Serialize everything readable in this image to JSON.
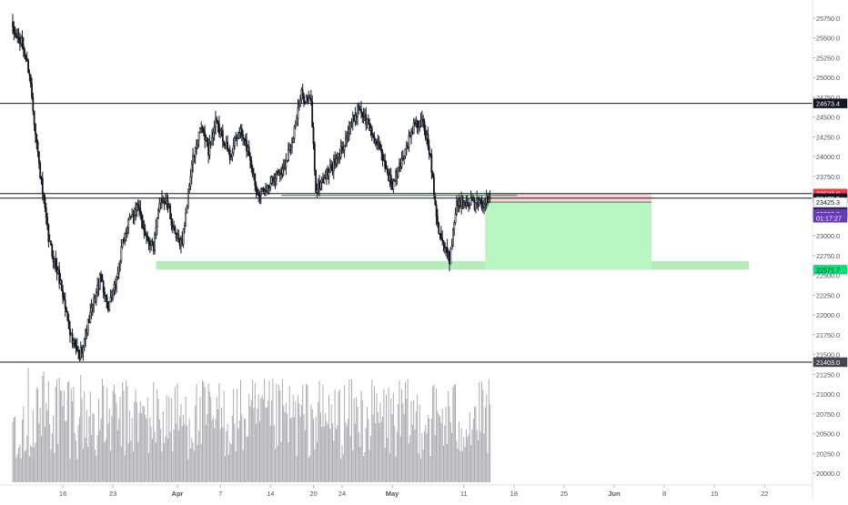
{
  "chart_data": {
    "type": "candlestick",
    "title": "",
    "xlabel": "",
    "ylabel": "",
    "ylim": [
      19900,
      25900
    ],
    "grid": false,
    "legend": "none",
    "price_axis": {
      "ticks": [
        20000,
        20250,
        20500,
        20750,
        21000,
        21250,
        21500,
        21750,
        22000,
        22250,
        22500,
        22750,
        23000,
        23250,
        23500,
        23750,
        24000,
        24250,
        24500,
        24750,
        25000,
        25250,
        25500,
        25750
      ],
      "tick_labels": [
        "20000.0",
        "20250.0",
        "20500.0",
        "20750.0",
        "21000.0",
        "21250.0",
        "21500.0",
        "21750.0",
        "22000.0",
        "22250.0",
        "22500.0",
        "22750.0",
        "23000.0",
        "23250.0",
        "23500.0",
        "23750.0",
        "24000.0",
        "24250.0",
        "24500.0",
        "24750.0",
        "25000.0",
        "25250.0",
        "25500.0",
        "25750.0"
      ]
    },
    "time_axis": {
      "labels": [
        "16",
        "23",
        "Apr",
        "7",
        "14",
        "20",
        "24",
        "May",
        "11",
        "18",
        "25",
        "Jun",
        "8",
        "15",
        "22"
      ],
      "label_positions": [
        "2020-03-16",
        "2020-03-23",
        "2020-04-01",
        "2020-04-07",
        "2020-04-14",
        "2020-04-20",
        "2020-04-24",
        "2020-05-01",
        "2020-05-11",
        "2020-05-18",
        "2020-05-25",
        "2020-06-01",
        "2020-06-08",
        "2020-06-15",
        "2020-06-22"
      ],
      "range": [
        "2020-03-09",
        "2020-06-26"
      ]
    },
    "candles": {
      "start": "2020-03-09T00:00",
      "interval_hours": 4,
      "count": 468,
      "anchors": [
        [
          0,
          25580
        ],
        [
          8,
          25420
        ],
        [
          14,
          25050
        ],
        [
          22,
          23900
        ],
        [
          30,
          22950
        ],
        [
          40,
          22400
        ],
        [
          50,
          21650
        ],
        [
          56,
          21480
        ],
        [
          66,
          22050
        ],
        [
          74,
          22500
        ],
        [
          80,
          22050
        ],
        [
          86,
          22380
        ],
        [
          94,
          23050
        ],
        [
          104,
          23380
        ],
        [
          112,
          23000
        ],
        [
          118,
          22850
        ],
        [
          124,
          23500
        ],
        [
          130,
          23380
        ],
        [
          136,
          22980
        ],
        [
          142,
          22920
        ],
        [
          150,
          23900
        ],
        [
          158,
          24380
        ],
        [
          164,
          24080
        ],
        [
          170,
          24420
        ],
        [
          176,
          24250
        ],
        [
          182,
          24000
        ],
        [
          190,
          24340
        ],
        [
          198,
          24050
        ],
        [
          204,
          23600
        ],
        [
          210,
          23530
        ],
        [
          218,
          23750
        ],
        [
          226,
          23820
        ],
        [
          234,
          24220
        ],
        [
          242,
          24780
        ],
        [
          250,
          24680
        ],
        [
          254,
          23580
        ],
        [
          262,
          23760
        ],
        [
          272,
          23960
        ],
        [
          282,
          24350
        ],
        [
          290,
          24640
        ],
        [
          298,
          24400
        ],
        [
          306,
          24130
        ],
        [
          312,
          23900
        ],
        [
          318,
          23620
        ],
        [
          328,
          24050
        ],
        [
          336,
          24380
        ],
        [
          344,
          24430
        ],
        [
          350,
          24000
        ],
        [
          356,
          23150
        ],
        [
          362,
          22850
        ],
        [
          366,
          22700
        ],
        [
          372,
          23420
        ],
        [
          380,
          23460
        ],
        [
          388,
          23390
        ],
        [
          393,
          23410
        ],
        [
          397,
          23451
        ],
        [
          400,
          23451
        ]
      ]
    },
    "horizontal_lines": [
      24673.4,
      23533.9,
      23475.3,
      21403.0
    ],
    "support_zone": [
      22571.7,
      22680
    ],
    "position": {
      "entry": 23425.3,
      "stop": 23533.9,
      "target": 22571.7,
      "start_index": 396,
      "end_index": 430
    },
    "trendline": {
      "from_index": 225,
      "to_index": 400,
      "value": 23533.9
    },
    "price_labels": [
      {
        "value": 24673.4,
        "text": "24673.4",
        "color": "#131722"
      },
      {
        "value": 23533.9,
        "text": "23533.9",
        "color": "#f23645"
      },
      {
        "value": 23475.3,
        "text": "23475.3",
        "color": "#131722"
      },
      {
        "value": 23425.3,
        "text": "23425.3",
        "color": "#ffffff"
      },
      {
        "value": 23296.7,
        "text": "23296.7",
        "color": "#131722"
      },
      {
        "value": 23280.3,
        "text": "23280.3",
        "color": "#673ab7"
      },
      {
        "value": 23228.0,
        "text": "01:17:27",
        "color": "#673ab7"
      },
      {
        "value": 22571.7,
        "text": "22571.7",
        "color": "#00e676"
      },
      {
        "value": 21403.0,
        "text": "21403.0",
        "color": "#434651"
      }
    ],
    "colors": {
      "candle": "#131722",
      "volume": "#a9abb0",
      "axis_text": "#50535e",
      "line": "#131722",
      "support_zone": "#9ee6a2",
      "profit_zone": "#b8f5c0",
      "loss_zone": "#fcd4d7"
    }
  }
}
